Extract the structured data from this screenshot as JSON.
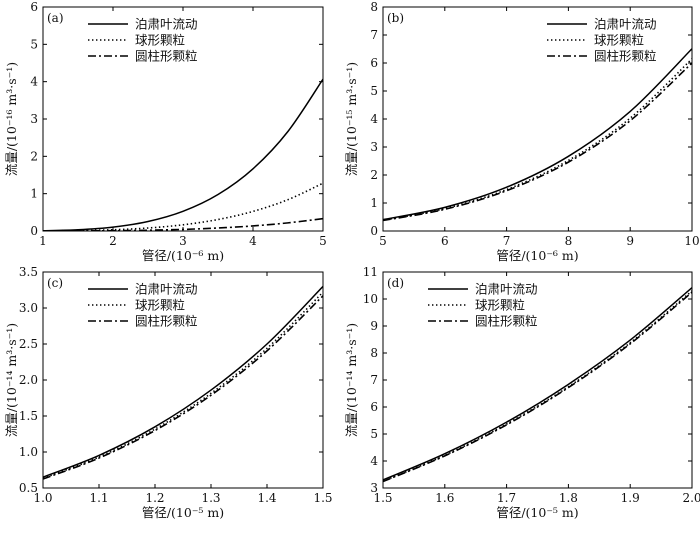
{
  "chart_data": [
    {
      "type": "line",
      "panel_label": "(a)",
      "xlabel": "管径/(10⁻⁶ m)",
      "ylabel": "流量/(10⁻¹⁶ m³·s⁻¹)",
      "xlim": [
        1,
        5
      ],
      "ylim": [
        0,
        6
      ],
      "xticks": [
        "1",
        "2",
        "3",
        "4",
        "5"
      ],
      "yticks": [
        "0",
        "1",
        "2",
        "3",
        "4",
        "5",
        "6"
      ],
      "legend_position": "top-left",
      "series": [
        {
          "name": "泊肃叶流动",
          "style": "solid",
          "x": [
            1,
            1.5,
            2,
            2.5,
            3,
            3.5,
            4,
            4.5,
            5
          ],
          "y": [
            0.0065,
            0.033,
            0.104,
            0.254,
            0.527,
            0.977,
            1.666,
            2.669,
            4.068
          ]
        },
        {
          "name": "球形颗粒",
          "style": "dotted",
          "x": [
            1,
            1.5,
            2,
            2.5,
            3,
            3.5,
            4,
            4.5,
            5
          ],
          "y": [
            0.002,
            0.0104,
            0.033,
            0.08,
            0.166,
            0.308,
            0.525,
            0.84,
            1.28
          ]
        },
        {
          "name": "圆柱形颗粒",
          "style": "dashdot",
          "x": [
            1,
            1.5,
            2,
            2.5,
            3,
            3.5,
            4,
            4.5,
            5
          ],
          "y": [
            0.0005,
            0.0027,
            0.0086,
            0.021,
            0.043,
            0.08,
            0.136,
            0.218,
            0.332
          ]
        }
      ]
    },
    {
      "type": "line",
      "panel_label": "(b)",
      "xlabel": "管径/(10⁻⁶ m)",
      "ylabel": "流量/(10⁻¹⁵ m³·s⁻¹)",
      "xlim": [
        5,
        10
      ],
      "ylim": [
        0,
        8
      ],
      "xticks": [
        "5",
        "6",
        "7",
        "8",
        "9",
        "10"
      ],
      "yticks": [
        "0",
        "1",
        "2",
        "3",
        "4",
        "5",
        "6",
        "7",
        "8"
      ],
      "legend_position": "top-right",
      "series": [
        {
          "name": "泊肃叶流动",
          "style": "solid",
          "x": [
            5,
            6,
            7,
            8,
            9,
            10
          ],
          "y": [
            0.407,
            0.844,
            1.563,
            2.667,
            4.271,
            6.51
          ]
        },
        {
          "name": "球形颗粒",
          "style": "dotted",
          "x": [
            5,
            6,
            7,
            8,
            9,
            10
          ],
          "y": [
            0.385,
            0.8,
            1.48,
            2.52,
            4.03,
            6.15
          ]
        },
        {
          "name": "圆柱形颗粒",
          "style": "dashdot",
          "x": [
            5,
            6,
            7,
            8,
            9,
            10
          ],
          "y": [
            0.375,
            0.775,
            1.44,
            2.46,
            3.94,
            6.0
          ]
        }
      ]
    },
    {
      "type": "line",
      "panel_label": "(c)",
      "xlabel": "管径/(10⁻⁵ m)",
      "ylabel": "流量/(10⁻¹⁴ m³·s⁻¹)",
      "xlim": [
        1.0,
        1.5
      ],
      "ylim": [
        0.5,
        3.5
      ],
      "xticks": [
        "1.0",
        "1.1",
        "1.2",
        "1.3",
        "1.4",
        "1.5"
      ],
      "yticks": [
        "0.5",
        "1.0",
        "1.5",
        "2.0",
        "2.5",
        "3.0",
        "3.5"
      ],
      "legend_position": "top-left",
      "series": [
        {
          "name": "泊肃叶流动",
          "style": "solid",
          "x": [
            1.0,
            1.1,
            1.2,
            1.3,
            1.4,
            1.5
          ],
          "y": [
            0.651,
            0.953,
            1.35,
            1.86,
            2.5,
            3.3
          ]
        },
        {
          "name": "球形颗粒",
          "style": "dotted",
          "x": [
            1.0,
            1.1,
            1.2,
            1.3,
            1.4,
            1.5
          ],
          "y": [
            0.635,
            0.93,
            1.318,
            1.815,
            2.44,
            3.22
          ]
        },
        {
          "name": "圆柱形颗粒",
          "style": "dashdot",
          "x": [
            1.0,
            1.1,
            1.2,
            1.3,
            1.4,
            1.5
          ],
          "y": [
            0.625,
            0.916,
            1.298,
            1.788,
            2.405,
            3.17
          ]
        }
      ]
    },
    {
      "type": "line",
      "panel_label": "(d)",
      "xlabel": "管径/(10⁻⁵ m)",
      "ylabel": "流量/(10⁻¹⁴ m³·s⁻¹)",
      "xlim": [
        1.5,
        2.0
      ],
      "ylim": [
        3,
        11
      ],
      "xticks": [
        "1.5",
        "1.6",
        "1.7",
        "1.8",
        "1.9",
        "2.0"
      ],
      "yticks": [
        "3",
        "4",
        "5",
        "6",
        "7",
        "8",
        "9",
        "10",
        "11"
      ],
      "legend_position": "top-left",
      "series": [
        {
          "name": "泊肃叶流动",
          "style": "solid",
          "x": [
            1.5,
            1.6,
            1.7,
            1.8,
            1.9,
            2.0
          ],
          "y": [
            3.3,
            4.27,
            5.44,
            6.84,
            8.48,
            10.42
          ]
        },
        {
          "name": "球形颗粒",
          "style": "dotted",
          "x": [
            1.5,
            1.6,
            1.7,
            1.8,
            1.9,
            2.0
          ],
          "y": [
            3.25,
            4.21,
            5.37,
            6.75,
            8.38,
            10.3
          ]
        },
        {
          "name": "圆柱形颗粒",
          "style": "dashdot",
          "x": [
            1.5,
            1.6,
            1.7,
            1.8,
            1.9,
            2.0
          ],
          "y": [
            3.24,
            4.19,
            5.34,
            6.72,
            8.34,
            10.25
          ]
        }
      ]
    }
  ]
}
